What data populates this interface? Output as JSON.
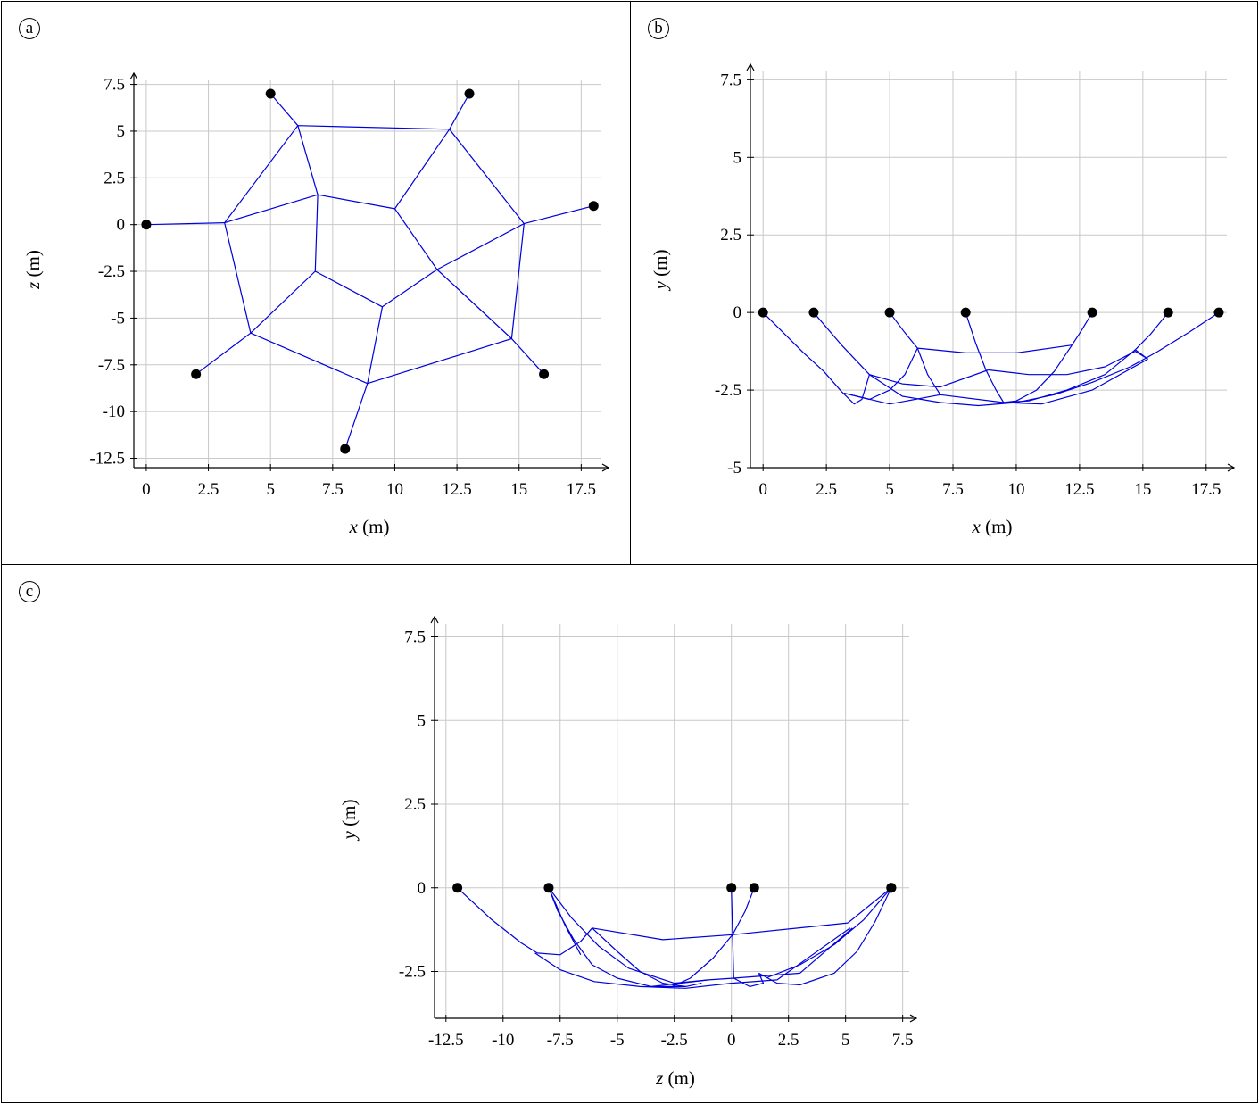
{
  "chart_data": [
    {
      "panel": "a",
      "type": "line",
      "title": "",
      "xlabel": "x",
      "xunit": "(m)",
      "ylabel": "z",
      "yunit": "(m)",
      "xlim": [
        -0.5,
        18.6
      ],
      "ylim": [
        -13.0,
        8.1
      ],
      "xticks": [
        0,
        2.5,
        5,
        7.5,
        10,
        12.5,
        15,
        17.5
      ],
      "xtick_labels": [
        "0",
        "2.5",
        "5",
        "7.5",
        "10",
        "12.5",
        "15",
        "17.5"
      ],
      "yticks": [
        -12.5,
        -10,
        -7.5,
        -5,
        -2.5,
        0,
        2.5,
        5,
        7.5
      ],
      "ytick_labels": [
        "-12.5",
        "-10",
        "-7.5",
        "-5",
        "-2.5",
        "0",
        "2.5",
        "5",
        "7.5"
      ],
      "grid": true,
      "anchors": [
        [
          0,
          0
        ],
        [
          5,
          7
        ],
        [
          13,
          7
        ],
        [
          18,
          1
        ],
        [
          16,
          -8
        ],
        [
          8,
          -12
        ],
        [
          2,
          -8
        ]
      ],
      "series": [
        {
          "points": [
            [
              0,
              0
            ],
            [
              3.15,
              0.1
            ]
          ]
        },
        {
          "points": [
            [
              5,
              7
            ],
            [
              6.1,
              5.3
            ]
          ]
        },
        {
          "points": [
            [
              13,
              7
            ],
            [
              12.2,
              5.1
            ]
          ]
        },
        {
          "points": [
            [
              18,
              1
            ],
            [
              15.2,
              0.05
            ]
          ]
        },
        {
          "points": [
            [
              16,
              -8
            ],
            [
              14.7,
              -6.1
            ]
          ]
        },
        {
          "points": [
            [
              8,
              -12
            ],
            [
              8.9,
              -8.5
            ]
          ]
        },
        {
          "points": [
            [
              2,
              -8
            ],
            [
              4.2,
              -5.8
            ]
          ]
        },
        {
          "points": [
            [
              6.1,
              5.3
            ],
            [
              12.2,
              5.1
            ],
            [
              15.2,
              0.05
            ],
            [
              14.7,
              -6.1
            ],
            [
              8.9,
              -8.5
            ],
            [
              4.2,
              -5.8
            ],
            [
              3.15,
              0.1
            ],
            [
              6.1,
              5.3
            ]
          ]
        },
        {
          "points": [
            [
              6.9,
              1.6
            ],
            [
              10,
              0.85
            ],
            [
              11.7,
              -2.4
            ],
            [
              9.5,
              -4.4
            ],
            [
              6.8,
              -2.5
            ],
            [
              6.9,
              1.6
            ]
          ]
        },
        {
          "points": [
            [
              6.1,
              5.3
            ],
            [
              6.9,
              1.6
            ]
          ]
        },
        {
          "points": [
            [
              12.2,
              5.1
            ],
            [
              10,
              0.85
            ]
          ]
        },
        {
          "points": [
            [
              15.2,
              0.05
            ],
            [
              11.7,
              -2.4
            ],
            [
              14.7,
              -6.1
            ]
          ]
        },
        {
          "points": [
            [
              8.9,
              -8.5
            ],
            [
              9.5,
              -4.4
            ]
          ]
        },
        {
          "points": [
            [
              4.2,
              -5.8
            ],
            [
              6.8,
              -2.5
            ]
          ]
        },
        {
          "points": [
            [
              3.15,
              0.1
            ],
            [
              6.9,
              1.6
            ]
          ]
        }
      ]
    },
    {
      "panel": "b",
      "type": "line",
      "title": "",
      "xlabel": "x",
      "xunit": "(m)",
      "ylabel": "y",
      "yunit": "(m)",
      "xlim": [
        -0.5,
        18.6
      ],
      "ylim": [
        -5.0,
        8.0
      ],
      "xticks": [
        0,
        2.5,
        5,
        7.5,
        10,
        12.5,
        15,
        17.5
      ],
      "xtick_labels": [
        "0",
        "2.5",
        "5",
        "7.5",
        "10",
        "12.5",
        "15",
        "17.5"
      ],
      "yticks": [
        -5,
        -2.5,
        0,
        2.5,
        5,
        7.5
      ],
      "ytick_labels": [
        "-5",
        "-2.5",
        "0",
        "2.5",
        "5",
        "7.5"
      ],
      "grid": true,
      "anchors": [
        [
          0,
          0
        ],
        [
          2,
          0
        ],
        [
          5,
          0
        ],
        [
          8,
          0
        ],
        [
          13,
          0
        ],
        [
          16,
          0
        ],
        [
          18,
          0
        ]
      ],
      "series": [
        {
          "points": [
            [
              0,
              0
            ],
            [
              0.8,
              -0.65
            ],
            [
              1.6,
              -1.3
            ],
            [
              2.4,
              -1.9
            ],
            [
              3.1,
              -2.55
            ],
            [
              3.6,
              -2.95
            ],
            [
              3.9,
              -2.8
            ],
            [
              4.2,
              -2.0
            ]
          ]
        },
        {
          "points": [
            [
              2,
              0
            ],
            [
              3.1,
              -1.05
            ],
            [
              4.2,
              -2.0
            ]
          ]
        },
        {
          "points": [
            [
              5,
              0
            ],
            [
              5.6,
              -0.65
            ],
            [
              6.1,
              -1.15
            ]
          ]
        },
        {
          "points": [
            [
              8,
              0
            ],
            [
              8.4,
              -1.0
            ],
            [
              8.8,
              -1.85
            ],
            [
              9.2,
              -2.5
            ],
            [
              9.5,
              -2.9
            ]
          ]
        },
        {
          "points": [
            [
              13,
              0
            ],
            [
              12.6,
              -0.55
            ],
            [
              12.2,
              -1.05
            ]
          ]
        },
        {
          "points": [
            [
              16,
              0
            ],
            [
              15.3,
              -0.7
            ],
            [
              14.7,
              -1.2
            ],
            [
              13.5,
              -2.0
            ],
            [
              12.0,
              -2.5
            ],
            [
              10.5,
              -2.85
            ],
            [
              9.5,
              -2.9
            ]
          ]
        },
        {
          "points": [
            [
              18,
              0
            ],
            [
              16.8,
              -0.65
            ],
            [
              15.6,
              -1.25
            ],
            [
              14.5,
              -1.75
            ],
            [
              13.0,
              -2.25
            ],
            [
              11.5,
              -2.65
            ],
            [
              10.0,
              -2.9
            ],
            [
              8.5,
              -3.0
            ],
            [
              7.0,
              -2.9
            ],
            [
              5.5,
              -2.7
            ],
            [
              4.2,
              -2.0
            ]
          ]
        },
        {
          "points": [
            [
              6.1,
              -1.15
            ],
            [
              8.0,
              -1.3
            ],
            [
              10.0,
              -1.3
            ],
            [
              12.2,
              -1.05
            ]
          ]
        },
        {
          "points": [
            [
              4.2,
              -2.0
            ],
            [
              5.5,
              -2.3
            ],
            [
              7.0,
              -2.4
            ],
            [
              8.9,
              -1.85
            ]
          ]
        },
        {
          "points": [
            [
              8.9,
              -1.85
            ],
            [
              10.5,
              -2.0
            ],
            [
              12.0,
              -2.0
            ],
            [
              13.5,
              -1.75
            ],
            [
              14.7,
              -1.25
            ],
            [
              15.2,
              -1.5
            ]
          ]
        },
        {
          "points": [
            [
              6.1,
              -1.15
            ],
            [
              5.6,
              -2.0
            ],
            [
              5.0,
              -2.5
            ],
            [
              4.2,
              -2.8
            ],
            [
              3.2,
              -2.6
            ]
          ]
        },
        {
          "points": [
            [
              6.1,
              -1.15
            ],
            [
              6.5,
              -2.0
            ],
            [
              7.0,
              -2.65
            ]
          ]
        },
        {
          "points": [
            [
              12.2,
              -1.05
            ],
            [
              11.5,
              -1.9
            ],
            [
              10.8,
              -2.5
            ],
            [
              10.0,
              -2.85
            ],
            [
              9.5,
              -2.9
            ]
          ]
        },
        {
          "points": [
            [
              3.2,
              -2.6
            ],
            [
              5.0,
              -2.95
            ],
            [
              7.0,
              -2.65
            ],
            [
              9.5,
              -2.9
            ],
            [
              11.0,
              -2.95
            ],
            [
              13.0,
              -2.5
            ],
            [
              15.2,
              -1.5
            ]
          ]
        },
        {
          "points": [
            [
              14.7,
              -1.2
            ],
            [
              15.2,
              -1.5
            ]
          ]
        }
      ]
    },
    {
      "panel": "c",
      "type": "line",
      "title": "",
      "xlabel": "z",
      "xunit": "(m)",
      "ylabel": "y",
      "yunit": "(m)",
      "xlim": [
        -13.0,
        8.1
      ],
      "ylim": [
        -3.9,
        8.1
      ],
      "xticks": [
        -12.5,
        -10,
        -7.5,
        -5,
        -2.5,
        0,
        2.5,
        5,
        7.5
      ],
      "xtick_labels": [
        "-12.5",
        "-10",
        "-7.5",
        "-5",
        "-2.5",
        "0",
        "2.5",
        "5",
        "7.5"
      ],
      "yticks": [
        -2.5,
        0,
        2.5,
        5,
        7.5
      ],
      "ytick_labels": [
        "-2.5",
        "0",
        "2.5",
        "5",
        "7.5"
      ],
      "grid": true,
      "anchors": [
        [
          -12,
          0
        ],
        [
          -8,
          0
        ],
        [
          0,
          0
        ],
        [
          1,
          0
        ],
        [
          7,
          0
        ],
        [
          7,
          0
        ]
      ],
      "series": [
        {
          "points": [
            [
              -12,
              0
            ],
            [
              -10.5,
              -0.95
            ],
            [
              -9.2,
              -1.65
            ],
            [
              -8.5,
              -1.95
            ],
            [
              -7.5,
              -2.0
            ],
            [
              -6.6,
              -1.6
            ],
            [
              -6.1,
              -1.2
            ]
          ]
        },
        {
          "points": [
            [
              -8,
              0
            ],
            [
              -7.6,
              -0.7
            ],
            [
              -6.9,
              -1.55
            ],
            [
              -6.1,
              -2.3
            ],
            [
              -5.0,
              -2.7
            ],
            [
              -3.5,
              -2.95
            ],
            [
              -2.0,
              -2.95
            ],
            [
              -1.3,
              -2.85
            ]
          ]
        },
        {
          "points": [
            [
              -8,
              0
            ],
            [
              -7.0,
              -0.9
            ],
            [
              -5.8,
              -1.75
            ],
            [
              -4.5,
              -2.4
            ],
            [
              -2.5,
              -2.85
            ],
            [
              -1.0,
              -2.75
            ]
          ]
        },
        {
          "points": [
            [
              -8,
              0
            ],
            [
              -7.3,
              -1.1
            ],
            [
              -6.6,
              -2.0
            ]
          ]
        },
        {
          "points": [
            [
              0,
              0
            ],
            [
              0.05,
              -1.4
            ],
            [
              0.1,
              -2.7
            ]
          ]
        },
        {
          "points": [
            [
              1,
              0
            ],
            [
              0.6,
              -0.7
            ],
            [
              0.05,
              -1.4
            ]
          ]
        },
        {
          "points": [
            [
              7,
              0
            ],
            [
              6.0,
              -0.55
            ],
            [
              5.1,
              -1.05
            ]
          ]
        },
        {
          "points": [
            [
              7,
              0
            ],
            [
              5.8,
              -0.95
            ],
            [
              4.5,
              -1.7
            ],
            [
              3.0,
              -2.3
            ],
            [
              1.5,
              -2.7
            ]
          ]
        },
        {
          "points": [
            [
              7,
              0
            ],
            [
              6.3,
              -1.0
            ],
            [
              5.5,
              -1.9
            ],
            [
              4.5,
              -2.55
            ],
            [
              3.0,
              -2.9
            ],
            [
              2.0,
              -2.85
            ],
            [
              1.2,
              -2.55
            ]
          ]
        },
        {
          "points": [
            [
              -6.1,
              -1.2
            ],
            [
              -3.0,
              -1.55
            ],
            [
              0.05,
              -1.4
            ],
            [
              5.1,
              -1.05
            ]
          ]
        },
        {
          "points": [
            [
              -8.6,
              -1.95
            ],
            [
              -7.5,
              -2.45
            ],
            [
              -6.0,
              -2.8
            ],
            [
              -4.0,
              -2.95
            ],
            [
              -2.0,
              -3.0
            ],
            [
              0.0,
              -2.85
            ],
            [
              2.0,
              -2.75
            ],
            [
              5.2,
              -1.2
            ]
          ]
        },
        {
          "points": [
            [
              -6.1,
              -1.2
            ],
            [
              -5.0,
              -1.9
            ],
            [
              -4.0,
              -2.5
            ],
            [
              -3.0,
              -2.85
            ],
            [
              -2.0,
              -2.95
            ]
          ]
        },
        {
          "points": [
            [
              0.05,
              -1.4
            ],
            [
              -0.8,
              -2.1
            ],
            [
              -1.8,
              -2.7
            ],
            [
              -2.6,
              -2.95
            ]
          ]
        },
        {
          "points": [
            [
              0.1,
              -2.7
            ],
            [
              0.8,
              -2.95
            ],
            [
              1.4,
              -2.85
            ],
            [
              1.2,
              -2.55
            ]
          ]
        },
        {
          "points": [
            [
              -3.5,
              -2.95
            ],
            [
              -1.0,
              -2.75
            ],
            [
              0.1,
              -2.7
            ],
            [
              3.0,
              -2.55
            ],
            [
              5.3,
              -1.2
            ]
          ]
        }
      ]
    }
  ],
  "panels": {
    "a": {
      "label": "a"
    },
    "b": {
      "label": "b"
    },
    "c": {
      "label": "c"
    }
  },
  "colors": {
    "line": "#0000dd",
    "grid": "#c8c8c8",
    "anchor": "#000000"
  }
}
